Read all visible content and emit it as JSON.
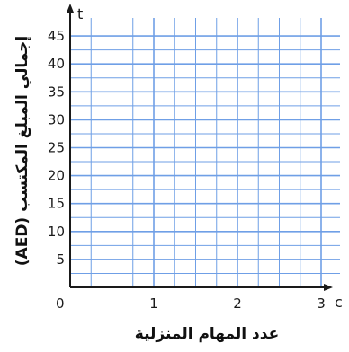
{
  "chart_data": {
    "type": "line",
    "x": [],
    "series": [],
    "xlabel": "عدد المهام المنزلية",
    "ylabel": "إجمالي المبلغ المكتسب (AED)",
    "x_axis_var": "c",
    "y_axis_var": "t",
    "origin_label": "0",
    "xlim": [
      0,
      3.2
    ],
    "ylim": [
      0,
      47.5
    ],
    "x_ticks": [
      1,
      2,
      3
    ],
    "x_tick_labels": [
      "1",
      "2",
      "3"
    ],
    "y_ticks": [
      5,
      10,
      15,
      20,
      25,
      30,
      35,
      40,
      45
    ],
    "y_tick_labels": [
      "5",
      "10",
      "15",
      "20",
      "25",
      "30",
      "35",
      "40",
      "45"
    ],
    "x_minor_step": 0.25,
    "y_minor_step": 2.5,
    "grid": true
  },
  "colors": {
    "grid": "#6f9fe6",
    "axis": "#1a1a1a",
    "text": "#1a1a1a"
  }
}
